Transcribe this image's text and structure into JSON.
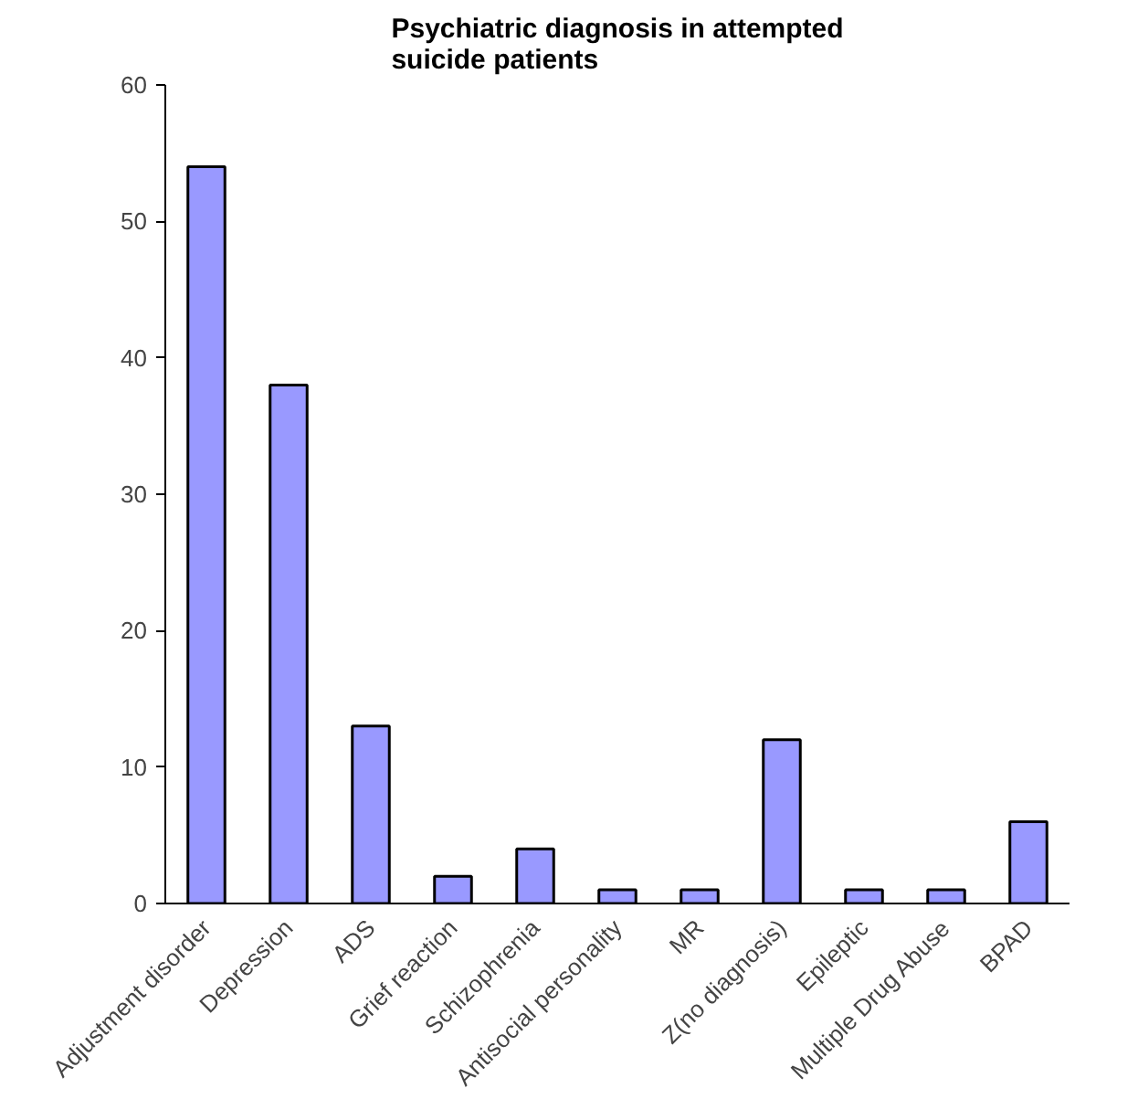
{
  "chart_data": {
    "type": "bar",
    "title": "Psychiatric diagnosis in attempted\nsuicide patients",
    "categories": [
      "Adjustment disorder",
      "Depression",
      "ADS",
      "Grief reaction",
      "Schizophrenia",
      "Antisocial personality",
      "MR",
      "Z(no diagnosis)",
      "Epileptic",
      "Multiple Drug Abuse",
      "BPAD"
    ],
    "values": [
      54,
      38,
      13,
      2,
      4,
      1,
      1,
      12,
      1,
      1,
      6
    ],
    "color": "#9999ff",
    "ylim": [
      0,
      60
    ],
    "yticks": [
      0,
      10,
      20,
      30,
      40,
      50,
      60
    ],
    "grid": false
  }
}
